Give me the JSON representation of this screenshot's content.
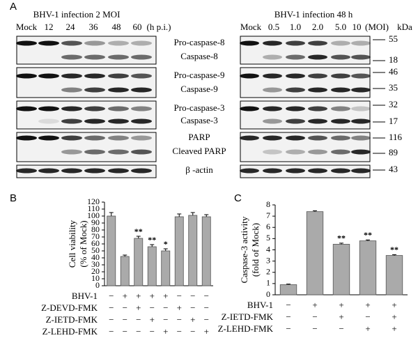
{
  "figure": {
    "panel_a": {
      "label": "A",
      "left": {
        "title": "BHV-1 infection 2 MOI",
        "lanes": [
          "Mock",
          "12",
          "24",
          "36",
          "48",
          "60"
        ],
        "unit": "(h p.i.)"
      },
      "right": {
        "title": "BHV-1 infection 48 h",
        "lanes": [
          "Mock",
          "0.5",
          "1.0",
          "2.0",
          "5.0",
          "10"
        ],
        "unit": "(MOI)",
        "mw_unit": "kDa"
      },
      "proteins": [
        "Pro-caspase-8",
        "Caspase-8",
        "Pro-caspase-9",
        "Caspase-9",
        "Pro-caspase-3",
        "Caspase-3",
        "PARP",
        "Cleaved PARP",
        "β -actin"
      ],
      "mw": [
        "55",
        "18",
        "46",
        "35",
        "32",
        "17",
        "116",
        "89",
        "43"
      ]
    }
  },
  "chart_data": [
    {
      "type": "bar",
      "panel": "B",
      "y_label": [
        "Cell viability",
        "(% of Mock)"
      ],
      "values": [
        100,
        42,
        68,
        56,
        50,
        99,
        101,
        99
      ],
      "errors": [
        5,
        2,
        3,
        3,
        3,
        4,
        4,
        3
      ],
      "significance": [
        null,
        null,
        "**",
        "**",
        "*",
        null,
        null,
        null
      ],
      "color": "#aaaaaa",
      "ylim": [
        0,
        120
      ],
      "yticks": [
        0,
        10,
        20,
        30,
        40,
        50,
        60,
        70,
        80,
        90,
        100,
        110,
        120
      ],
      "treatments": [
        {
          "name": "BHV-1",
          "signs": [
            "−",
            "+",
            "+",
            "+",
            "+",
            "−",
            "−",
            "−"
          ]
        },
        {
          "name": "Z-DEVD-FMK",
          "signs": [
            "−",
            "−",
            "+",
            "−",
            "−",
            "+",
            "−",
            "−"
          ]
        },
        {
          "name": "Z-IETD-FMK",
          "signs": [
            "−",
            "−",
            "−",
            "+",
            "−",
            "−",
            "+",
            "−"
          ]
        },
        {
          "name": "Z-LEHD-FMK",
          "signs": [
            "−",
            "−",
            "−",
            "−",
            "+",
            "−",
            "−",
            "+"
          ]
        }
      ]
    },
    {
      "type": "bar",
      "panel": "C",
      "y_label": [
        "Caspase-3 activity",
        "(fold of Mock)"
      ],
      "values": [
        0.9,
        7.4,
        4.5,
        4.8,
        3.5
      ],
      "errors": [
        0.05,
        0.08,
        0.1,
        0.08,
        0.07
      ],
      "significance": [
        null,
        null,
        "**",
        "**",
        "**"
      ],
      "color": "#aaaaaa",
      "ylim": [
        0,
        8
      ],
      "yticks": [
        0,
        1,
        2,
        3,
        4,
        5,
        6,
        7,
        8
      ],
      "treatments": [
        {
          "name": "BHV-1",
          "signs": [
            "−",
            "+",
            "+",
            "+",
            "+"
          ]
        },
        {
          "name": "Z-IETD-FMK",
          "signs": [
            "−",
            "−",
            "+",
            "−",
            "+"
          ]
        },
        {
          "name": "Z-LEHD-FMK",
          "signs": [
            "−",
            "−",
            "−",
            "+",
            "+"
          ]
        }
      ]
    }
  ]
}
